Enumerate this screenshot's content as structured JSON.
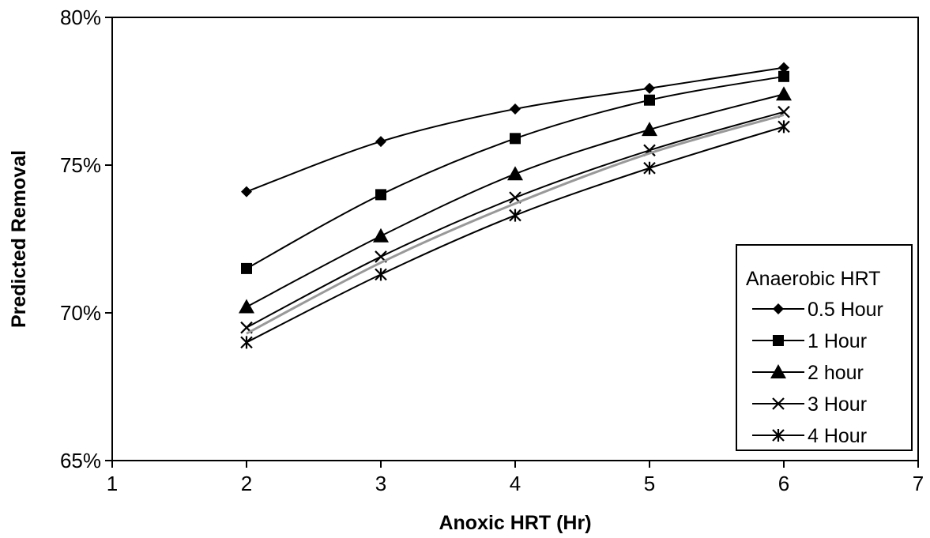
{
  "chart_data": {
    "type": "line",
    "title": "",
    "xlabel": "Anoxic HRT (Hr)",
    "ylabel": "Predicted Removal",
    "xlim": [
      1,
      7
    ],
    "ylim": [
      0.65,
      0.8
    ],
    "x_ticks": [
      "1",
      "2",
      "3",
      "4",
      "5",
      "6",
      "7"
    ],
    "y_ticks": [
      "65%",
      "70%",
      "75%",
      "80%"
    ],
    "grid": false,
    "legend_title": "Anaerobic HRT",
    "legend_position": "bottom-right",
    "x": [
      2,
      3,
      4,
      5,
      6
    ],
    "series": [
      {
        "name": "0.5 Hour",
        "marker": "diamond",
        "values": [
          0.741,
          0.758,
          0.769,
          0.776,
          0.783
        ]
      },
      {
        "name": "1 Hour",
        "marker": "square",
        "values": [
          0.715,
          0.74,
          0.759,
          0.772,
          0.78
        ]
      },
      {
        "name": "2 hour",
        "marker": "triangle",
        "values": [
          0.702,
          0.726,
          0.747,
          0.762,
          0.774
        ]
      },
      {
        "name": "3 Hour",
        "marker": "x",
        "values": [
          0.695,
          0.719,
          0.739,
          0.755,
          0.768
        ]
      },
      {
        "name": "",
        "marker": "none",
        "line_color": "#999999",
        "values": [
          0.693,
          0.717,
          0.737,
          0.754,
          0.767
        ]
      },
      {
        "name": "4 Hour",
        "marker": "asterisk",
        "values": [
          0.69,
          0.713,
          0.733,
          0.749,
          0.763
        ]
      }
    ]
  }
}
